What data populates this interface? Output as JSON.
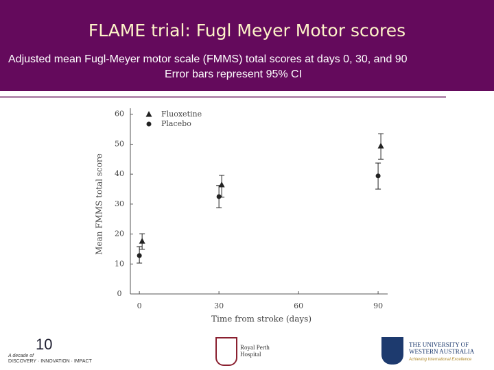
{
  "header": {
    "title": "FLAME trial: Fugl Meyer Motor scores",
    "subtitle_lines": [
      "Adjusted mean Fugl-Meyer motor scale (FMMS) total scores at days 0, 30, and 90",
      "Error bars represent 95% CI"
    ]
  },
  "chart_data": {
    "type": "errorbar",
    "x_label": "Time from stroke (days)",
    "y_label": "Mean FMMS total score",
    "x": [
      0,
      30,
      90
    ],
    "series": [
      {
        "name": "Fluoxetine",
        "marker": "triangle",
        "color": "#222222",
        "values": [
          17.6,
          36.4,
          49.4
        ],
        "ci_low": [
          14.9,
          32.3,
          45
        ],
        "ci_high": [
          20.1,
          39.6,
          53.5
        ]
      },
      {
        "name": "Placebo",
        "marker": "circle",
        "color": "#222222",
        "values": [
          12.8,
          32.5,
          39.4
        ],
        "ci_low": [
          10.3,
          28.8,
          35
        ],
        "ci_high": [
          15.8,
          36.2,
          43.7
        ]
      }
    ],
    "xlim": [
      -3.4,
      93.6
    ],
    "xticks": [
      0,
      30,
      60,
      90
    ],
    "ylim": [
      0,
      62
    ],
    "yticks": [
      0,
      10,
      20,
      30,
      40,
      50,
      60
    ],
    "legend": "upper left",
    "grid": false
  },
  "footer": {
    "logo1": {
      "number": "10",
      "line1": "A decade of",
      "line2": "DISCOVERY · INNOVATION · IMPACT"
    },
    "logo2": "Royal Perth Hospital",
    "logo3": {
      "name": "THE UNIVERSITY OF WESTERN AUSTRALIA",
      "motto": "Achieving International Excellence"
    }
  }
}
